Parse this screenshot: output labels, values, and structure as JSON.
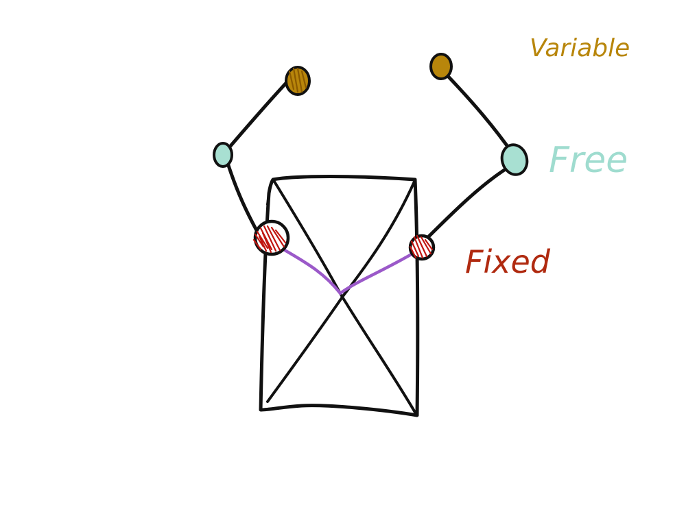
{
  "legend": {
    "variable": {
      "label": "Variable",
      "color": "#b8860b"
    },
    "free": {
      "label": "Free",
      "color": "#9fdccf"
    },
    "fixed": {
      "label": "Fixed",
      "color": "#b02a10"
    }
  },
  "colors": {
    "ink": "#111111",
    "fixed_fill": "#c0150f",
    "variable_fill": "#b8860b",
    "free_fill": "#a8e0d2",
    "link_line": "#9b59c9",
    "background": "#ffffff"
  },
  "icons": {
    "variable_node": "filled-oval",
    "free_node": "filled-oval",
    "fixed_node": "scribbled-circle"
  }
}
